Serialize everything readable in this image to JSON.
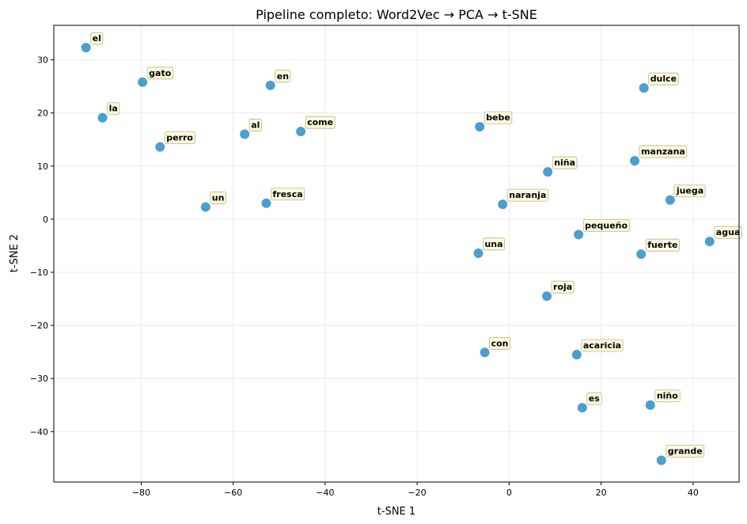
{
  "chart_data": {
    "type": "scatter",
    "title": "Pipeline completo: Word2Vec → PCA → t-SNE",
    "xlabel": "t-SNE 1",
    "ylabel": "t-SNE 2",
    "xlim": [
      -99,
      50
    ],
    "ylim": [
      -49.5,
      36.5
    ],
    "xticks": [
      -80,
      -60,
      -40,
      -20,
      0,
      20,
      40
    ],
    "yticks": [
      -40,
      -30,
      -20,
      -10,
      0,
      10,
      20,
      30
    ],
    "xtick_labels": [
      "−80",
      "−60",
      "−40",
      "−20",
      "0",
      "20",
      "40"
    ],
    "ytick_labels": [
      "−40",
      "−30",
      "−20",
      "−10",
      "0",
      "10",
      "20",
      "30"
    ],
    "grid": true,
    "point_color": "#4a9fcf",
    "points": [
      {
        "label": "el",
        "x": -92.0,
        "y": 32.3
      },
      {
        "label": "gato",
        "x": -79.7,
        "y": 25.8
      },
      {
        "label": "en",
        "x": -51.9,
        "y": 25.2
      },
      {
        "label": "la",
        "x": -88.4,
        "y": 19.1
      },
      {
        "label": "perro",
        "x": -75.9,
        "y": 13.6
      },
      {
        "label": "al",
        "x": -57.5,
        "y": 16.0
      },
      {
        "label": "come",
        "x": -45.3,
        "y": 16.5
      },
      {
        "label": "un",
        "x": -66.0,
        "y": 2.3
      },
      {
        "label": "fresca",
        "x": -52.8,
        "y": 3.0
      },
      {
        "label": "dulce",
        "x": 29.3,
        "y": 24.7
      },
      {
        "label": "bebe",
        "x": -6.4,
        "y": 17.4
      },
      {
        "label": "manzana",
        "x": 27.3,
        "y": 11.0
      },
      {
        "label": "niña",
        "x": 8.4,
        "y": 8.9
      },
      {
        "label": "naranja",
        "x": -1.4,
        "y": 2.8
      },
      {
        "label": "juega",
        "x": 35.0,
        "y": 3.6
      },
      {
        "label": "pequeño",
        "x": 15.1,
        "y": -2.9
      },
      {
        "label": "agua",
        "x": 43.6,
        "y": -4.2
      },
      {
        "label": "una",
        "x": -6.7,
        "y": -6.4
      },
      {
        "label": "fuerte",
        "x": 28.7,
        "y": -6.6
      },
      {
        "label": "roja",
        "x": 8.2,
        "y": -14.5
      },
      {
        "label": "con",
        "x": -5.3,
        "y": -25.1
      },
      {
        "label": "acaricia",
        "x": 14.7,
        "y": -25.5
      },
      {
        "label": "es",
        "x": 15.9,
        "y": -35.5
      },
      {
        "label": "niño",
        "x": 30.7,
        "y": -35.0
      },
      {
        "label": "grande",
        "x": 33.1,
        "y": -45.4
      }
    ]
  }
}
